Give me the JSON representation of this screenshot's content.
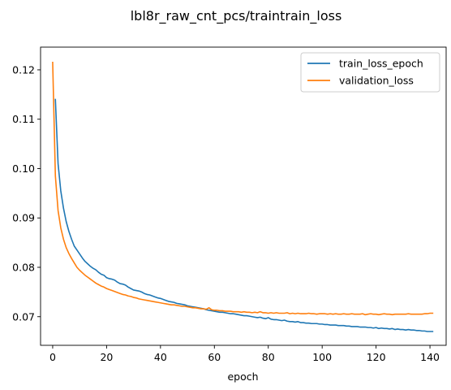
{
  "chart_data": {
    "type": "line",
    "title": "lbl8r_raw_cnt_pcs/traintrain_loss",
    "xlabel": "epoch",
    "ylabel": "",
    "xlim": [
      -4.5,
      146
    ],
    "ylim": [
      0.0642,
      0.1246
    ],
    "x_ticks": [
      0,
      20,
      40,
      60,
      80,
      100,
      120,
      140
    ],
    "y_ticks": [
      0.07,
      0.08,
      0.09,
      0.1,
      0.11,
      0.12
    ],
    "y_tick_labels": [
      "0.07",
      "0.08",
      "0.09",
      "0.10",
      "0.11",
      "0.12"
    ],
    "grid": false,
    "legend_position": "top-right",
    "series": [
      {
        "name": "train_loss_epoch",
        "color": "#1f77b4",
        "x_start": 1,
        "x_step": 1,
        "values": [
          0.114,
          0.101,
          0.0955,
          0.092,
          0.0893,
          0.0873,
          0.0857,
          0.0843,
          0.0835,
          0.0827,
          0.0819,
          0.0812,
          0.0807,
          0.0802,
          0.0798,
          0.0795,
          0.079,
          0.0786,
          0.0784,
          0.0779,
          0.0777,
          0.0776,
          0.0774,
          0.077,
          0.0767,
          0.0766,
          0.0764,
          0.076,
          0.0757,
          0.0754,
          0.0753,
          0.0752,
          0.075,
          0.0747,
          0.0745,
          0.0744,
          0.0742,
          0.074,
          0.0738,
          0.0737,
          0.0735,
          0.0733,
          0.0731,
          0.073,
          0.0729,
          0.0727,
          0.0726,
          0.0725,
          0.0724,
          0.0722,
          0.0721,
          0.072,
          0.0719,
          0.0718,
          0.0717,
          0.0716,
          0.0714,
          0.0713,
          0.0712,
          0.0711,
          0.071,
          0.0709,
          0.0709,
          0.0708,
          0.0707,
          0.0706,
          0.0706,
          0.0705,
          0.0704,
          0.0703,
          0.0702,
          0.0702,
          0.0701,
          0.07,
          0.0699,
          0.0698,
          0.0699,
          0.0697,
          0.0696,
          0.0698,
          0.0695,
          0.0694,
          0.0694,
          0.0693,
          0.0692,
          0.0693,
          0.0691,
          0.069,
          0.069,
          0.0689,
          0.069,
          0.0688,
          0.0688,
          0.0687,
          0.0687,
          0.0686,
          0.0686,
          0.0686,
          0.0685,
          0.0685,
          0.0684,
          0.0684,
          0.0683,
          0.0683,
          0.0683,
          0.0682,
          0.0682,
          0.0682,
          0.0681,
          0.0681,
          0.068,
          0.068,
          0.068,
          0.0679,
          0.0679,
          0.0679,
          0.0678,
          0.0678,
          0.0677,
          0.0678,
          0.0676,
          0.0677,
          0.0676,
          0.0676,
          0.0675,
          0.0676,
          0.0674,
          0.0675,
          0.0674,
          0.0674,
          0.0673,
          0.0674,
          0.0673,
          0.0673,
          0.0672,
          0.0672,
          0.0671,
          0.0671,
          0.067,
          0.067,
          0.067
        ]
      },
      {
        "name": "validation_loss",
        "color": "#ff7f0e",
        "x_start": 0,
        "x_step": 1,
        "values": [
          0.1215,
          0.0985,
          0.0915,
          0.088,
          0.0857,
          0.084,
          0.0828,
          0.0818,
          0.0809,
          0.08,
          0.0794,
          0.0789,
          0.0784,
          0.078,
          0.0776,
          0.0772,
          0.0768,
          0.0765,
          0.0762,
          0.076,
          0.0757,
          0.0755,
          0.0753,
          0.0751,
          0.0749,
          0.0747,
          0.0745,
          0.0744,
          0.0742,
          0.0741,
          0.0739,
          0.0738,
          0.0736,
          0.0735,
          0.0734,
          0.0733,
          0.0732,
          0.0731,
          0.073,
          0.0729,
          0.0728,
          0.0727,
          0.0726,
          0.0725,
          0.0724,
          0.0724,
          0.0723,
          0.0722,
          0.0721,
          0.0721,
          0.072,
          0.0719,
          0.0718,
          0.0718,
          0.0717,
          0.0716,
          0.0716,
          0.0715,
          0.0718,
          0.0714,
          0.0713,
          0.0713,
          0.0712,
          0.0712,
          0.0711,
          0.0711,
          0.0711,
          0.071,
          0.071,
          0.071,
          0.0709,
          0.071,
          0.0709,
          0.0709,
          0.0708,
          0.0709,
          0.0708,
          0.071,
          0.0708,
          0.0708,
          0.0707,
          0.0708,
          0.0707,
          0.0708,
          0.0707,
          0.0707,
          0.0707,
          0.0708,
          0.0706,
          0.0707,
          0.0706,
          0.0707,
          0.0706,
          0.0706,
          0.0706,
          0.0707,
          0.0706,
          0.0706,
          0.0705,
          0.0706,
          0.0706,
          0.0706,
          0.0705,
          0.0706,
          0.0705,
          0.0706,
          0.0705,
          0.0705,
          0.0706,
          0.0705,
          0.0705,
          0.0706,
          0.0705,
          0.0705,
          0.0705,
          0.0706,
          0.0704,
          0.0705,
          0.0706,
          0.0705,
          0.0705,
          0.0704,
          0.0705,
          0.0706,
          0.0705,
          0.0705,
          0.0704,
          0.0705,
          0.0705,
          0.0705,
          0.0705,
          0.0705,
          0.0706,
          0.0705,
          0.0705,
          0.0705,
          0.0705,
          0.0705,
          0.0706,
          0.0706,
          0.0707,
          0.0707
        ]
      }
    ]
  }
}
